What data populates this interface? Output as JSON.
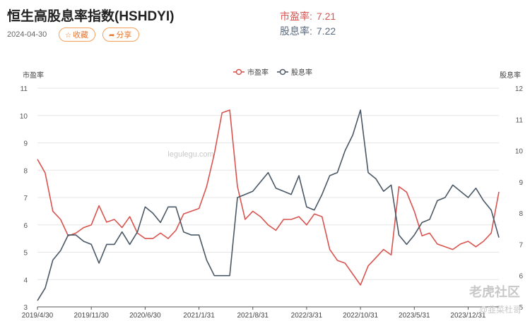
{
  "header": {
    "title": "恒生高股息率指数(HSHDYI)",
    "date": "2024-04-30",
    "fav_label": "收藏",
    "share_label": "分享",
    "pe_label": "市盈率:",
    "pe_value": "7.21",
    "dy_label": "股息率:",
    "dy_value": "7.22"
  },
  "colors": {
    "pe": "#d9534f",
    "dy": "#4a5866",
    "accent": "#e8772e"
  },
  "watermarks": {
    "site": "legulegu.com",
    "logo": "老虎社区",
    "sub": "@韭菜杜哥"
  },
  "chart_data": {
    "type": "line",
    "left_axis_label": "市盈率",
    "right_axis_label": "股息率",
    "left_ylim": [
      3,
      11
    ],
    "right_ylim": [
      5,
      12
    ],
    "left_ticks": [
      "3",
      "4",
      "5",
      "6",
      "7",
      "8",
      "9",
      "10",
      "11"
    ],
    "right_ticks": [
      "5",
      "6",
      "7",
      "8",
      "9",
      "10",
      "11",
      "12"
    ],
    "x_labels": [
      "2019/4/30",
      "2019/11/30",
      "2020/6/30",
      "2021/1/31",
      "2021/8/31",
      "2022/3/31",
      "2022/10/31",
      "2023/5/31",
      "2023/12/31"
    ],
    "x_count": 61,
    "x_label_index": [
      0,
      7,
      14,
      21,
      28,
      35,
      42,
      49,
      56
    ],
    "grid": true,
    "legend_position": "top-center",
    "series": [
      {
        "name": "市盈率",
        "axis": "left",
        "values": [
          8.4,
          7.9,
          6.5,
          6.2,
          5.6,
          5.7,
          5.9,
          6.0,
          6.7,
          6.1,
          6.2,
          5.9,
          6.3,
          5.7,
          5.5,
          5.5,
          5.7,
          5.5,
          5.8,
          6.4,
          6.5,
          6.6,
          7.4,
          8.6,
          10.1,
          10.2,
          7.4,
          6.2,
          6.5,
          6.3,
          6.0,
          5.8,
          6.2,
          6.2,
          6.3,
          6.0,
          6.4,
          6.3,
          5.1,
          4.7,
          4.6,
          4.2,
          3.8,
          4.5,
          4.8,
          5.1,
          4.9,
          7.4,
          7.2,
          6.5,
          5.6,
          5.7,
          5.3,
          5.2,
          5.1,
          5.3,
          5.4,
          5.2,
          5.4,
          5.7,
          7.21
        ]
      },
      {
        "name": "股息率",
        "axis": "right",
        "values": [
          5.2,
          5.6,
          6.5,
          6.8,
          7.3,
          7.3,
          7.1,
          7.0,
          6.4,
          7.0,
          7.0,
          7.4,
          7.0,
          7.4,
          8.2,
          8.0,
          7.7,
          8.2,
          8.2,
          7.4,
          7.3,
          7.3,
          6.5,
          6.0,
          6.0,
          6.0,
          8.5,
          8.6,
          8.7,
          9.0,
          9.3,
          8.8,
          8.7,
          8.6,
          9.2,
          8.2,
          8.1,
          8.6,
          9.2,
          9.3,
          10.0,
          10.5,
          11.3,
          9.3,
          9.1,
          8.7,
          8.9,
          7.3,
          7.0,
          7.3,
          7.7,
          7.8,
          8.4,
          8.5,
          8.9,
          8.7,
          8.5,
          8.8,
          8.4,
          8.1,
          7.22
        ]
      }
    ]
  }
}
